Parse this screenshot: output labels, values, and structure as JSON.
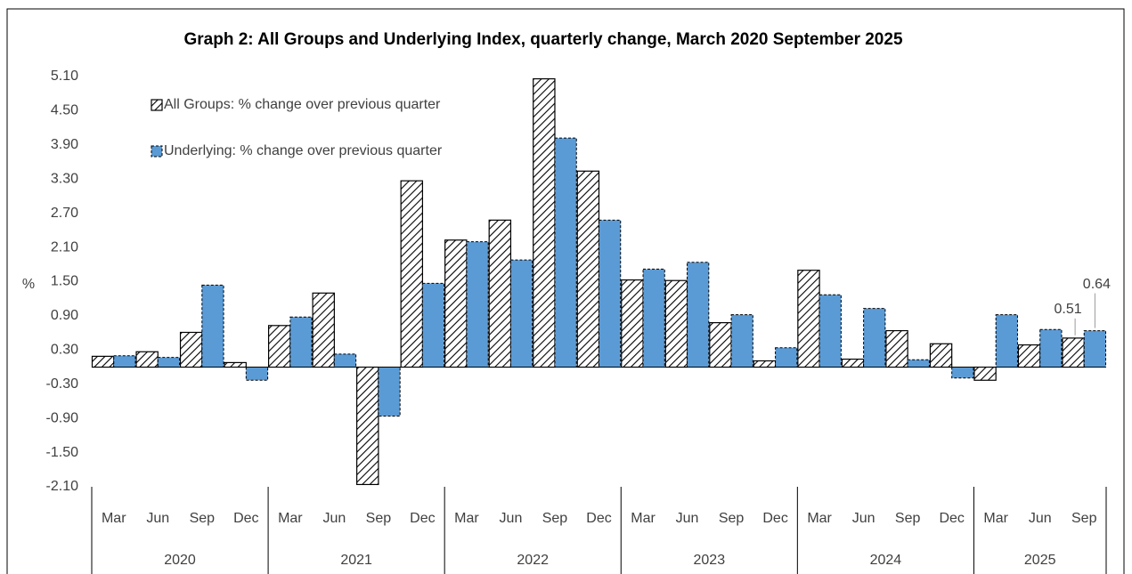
{
  "chart_data": {
    "type": "bar",
    "title": "Graph 2: All Groups and Underlying Index, quarterly change, March 2020 September 2025",
    "y_label": "%",
    "categories": [
      [
        "Mar",
        "2020"
      ],
      [
        "Jun",
        "2020"
      ],
      [
        "Sep",
        "2020"
      ],
      [
        "Dec",
        "2020"
      ],
      [
        "Mar",
        "2021"
      ],
      [
        "Jun",
        "2021"
      ],
      [
        "Sep",
        "2021"
      ],
      [
        "Dec",
        "2021"
      ],
      [
        "Mar",
        "2022"
      ],
      [
        "Jun",
        "2022"
      ],
      [
        "Sep",
        "2022"
      ],
      [
        "Dec",
        "2022"
      ],
      [
        "Mar",
        "2023"
      ],
      [
        "Jun",
        "2023"
      ],
      [
        "Sep",
        "2023"
      ],
      [
        "Dec",
        "2023"
      ],
      [
        "Mar",
        "2024"
      ],
      [
        "Jun",
        "2024"
      ],
      [
        "Sep",
        "2024"
      ],
      [
        "Dec",
        "2024"
      ],
      [
        "Mar",
        "2025"
      ],
      [
        "Jun",
        "2025"
      ],
      [
        "Sep",
        "2025"
      ]
    ],
    "series": [
      {
        "name": "All Groups: % change over previous quarter",
        "color": "#000000",
        "pattern": "hatch",
        "values": [
          0.19,
          0.27,
          0.61,
          0.08,
          0.73,
          1.3,
          -2.06,
          3.27,
          2.23,
          2.58,
          5.06,
          3.44,
          1.53,
          1.52,
          0.78,
          0.11,
          1.7,
          0.14,
          0.64,
          0.41,
          -0.23,
          0.39,
          0.51
        ],
        "value_labels": [
          null,
          null,
          null,
          null,
          null,
          null,
          null,
          null,
          null,
          null,
          null,
          null,
          null,
          null,
          null,
          null,
          null,
          null,
          null,
          null,
          null,
          null,
          "0.51"
        ]
      },
      {
        "name": "Underlying: % change over previous quarter",
        "color": "#5b9bd5",
        "pattern": "solid",
        "values": [
          0.2,
          0.17,
          1.44,
          -0.23,
          0.88,
          0.23,
          -0.86,
          1.47,
          2.2,
          1.88,
          4.02,
          2.58,
          1.72,
          1.84,
          0.92,
          0.34,
          1.27,
          1.03,
          0.13,
          -0.19,
          0.92,
          0.66,
          0.64
        ],
        "value_labels": [
          null,
          null,
          null,
          null,
          null,
          null,
          null,
          null,
          null,
          null,
          null,
          null,
          null,
          null,
          null,
          null,
          null,
          null,
          null,
          null,
          null,
          null,
          "0.64"
        ]
      }
    ],
    "ylim": [
      -2.1,
      5.1
    ],
    "yticks": [
      {
        "value": -2.1,
        "label": "-2.10"
      },
      {
        "value": -1.5,
        "label": "-1.50"
      },
      {
        "value": -0.9,
        "label": "-0.90"
      },
      {
        "value": -0.3,
        "label": "-0.30"
      },
      {
        "value": 0.3,
        "label": "0.30"
      },
      {
        "value": 0.9,
        "label": "0.90"
      },
      {
        "value": 1.5,
        "label": "1.50"
      },
      {
        "value": 2.1,
        "label": "2.10"
      },
      {
        "value": 2.7,
        "label": "2.70"
      },
      {
        "value": 3.3,
        "label": "3.30"
      },
      {
        "value": 3.9,
        "label": "3.90"
      },
      {
        "value": 4.5,
        "label": "4.50"
      },
      {
        "value": 5.1,
        "label": "5.10"
      }
    ],
    "grid": false,
    "legend": "top-left"
  }
}
